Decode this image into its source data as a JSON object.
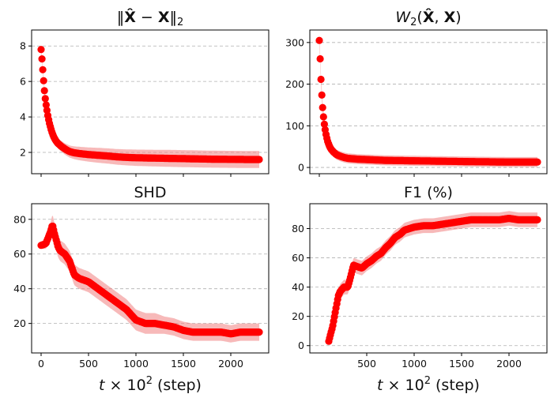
{
  "chart_data": [
    {
      "type": "scatter",
      "title": "‖X̂ − X‖₂",
      "xlabel": "",
      "ylabel": "",
      "xlim": [
        -100,
        2400
      ],
      "ylim": [
        0.8,
        8.9
      ],
      "xticks": [
        0,
        500,
        1000,
        1500,
        2000
      ],
      "yticks": [
        2,
        4,
        6,
        8
      ],
      "xticklabels_visible": false,
      "grid": "y-dashed",
      "color": "#ff0000",
      "band_color": "#f08080",
      "x": [
        0,
        10,
        20,
        30,
        40,
        55,
        70,
        85,
        100,
        120,
        140,
        170,
        200,
        250,
        300,
        350,
        400,
        500,
        600,
        700,
        800,
        900,
        1000,
        1200,
        1400,
        1600,
        1800,
        2000,
        2200,
        2300
      ],
      "y": [
        7.8,
        7.2,
        6.5,
        5.8,
        5.2,
        4.6,
        4.1,
        3.7,
        3.4,
        3.05,
        2.8,
        2.55,
        2.4,
        2.2,
        2.05,
        1.98,
        1.94,
        1.88,
        1.84,
        1.8,
        1.75,
        1.72,
        1.7,
        1.68,
        1.66,
        1.64,
        1.62,
        1.61,
        1.6,
        1.6
      ],
      "band": [
        0.15,
        0.15,
        0.15,
        0.15,
        0.16,
        0.17,
        0.18,
        0.19,
        0.2,
        0.22,
        0.25,
        0.28,
        0.3,
        0.32,
        0.34,
        0.36,
        0.38,
        0.4,
        0.42,
        0.43,
        0.44,
        0.45,
        0.46,
        0.47,
        0.48,
        0.48,
        0.48,
        0.48,
        0.48,
        0.48
      ]
    },
    {
      "type": "scatter",
      "title": "W₂(X̂, X)",
      "xlabel": "",
      "ylabel": "",
      "xlim": [
        -100,
        2400
      ],
      "ylim": [
        -15,
        330
      ],
      "xticks": [
        0,
        500,
        1000,
        1500,
        2000
      ],
      "yticks": [
        0,
        100,
        200,
        300
      ],
      "xticklabels_visible": false,
      "grid": "y-dashed",
      "color": "#ff0000",
      "band_color": "#f08080",
      "x": [
        0,
        5,
        10,
        15,
        20,
        30,
        40,
        55,
        70,
        85,
        100,
        120,
        150,
        180,
        220,
        260,
        300,
        400,
        500,
        700,
        1000,
        1300,
        1600,
        2000,
        2300
      ],
      "y": [
        305,
        280,
        255,
        225,
        200,
        160,
        130,
        100,
        80,
        65,
        55,
        45,
        37,
        31,
        27,
        24,
        22,
        20,
        19,
        17,
        16,
        15,
        14,
        13,
        13
      ],
      "band": [
        10,
        10,
        12,
        12,
        12,
        12,
        12,
        12,
        12,
        12,
        12,
        12,
        12,
        12,
        12,
        12,
        12,
        12,
        12,
        12,
        12,
        12,
        12,
        12,
        12
      ]
    },
    {
      "type": "scatter",
      "title": "SHD",
      "xlabel": "t × 10² (step)",
      "ylabel": "",
      "xlim": [
        -100,
        2400
      ],
      "ylim": [
        3,
        89
      ],
      "xticks": [
        0,
        500,
        1000,
        1500,
        2000
      ],
      "yticks": [
        20,
        40,
        60,
        80
      ],
      "xticklabels_visible": true,
      "grid": "y-dashed",
      "color": "#ff0000",
      "band_color": "#f08080",
      "x": [
        0,
        50,
        100,
        120,
        140,
        160,
        180,
        200,
        250,
        300,
        350,
        400,
        450,
        500,
        600,
        700,
        800,
        900,
        1000,
        1100,
        1200,
        1300,
        1400,
        1500,
        1600,
        1700,
        1800,
        1900,
        2000,
        2100,
        2200,
        2300
      ],
      "y": [
        65,
        66,
        73,
        77,
        72,
        68,
        64,
        62,
        60,
        56,
        48,
        46,
        45,
        44,
        40,
        36,
        32,
        28,
        22,
        20,
        20,
        19,
        18,
        16,
        15,
        15,
        15,
        15,
        14,
        15,
        15,
        15
      ],
      "band": [
        2,
        3,
        5,
        6,
        6,
        6,
        6,
        6,
        6,
        6,
        6,
        6,
        6,
        6,
        6,
        6,
        6,
        6,
        6,
        6,
        6,
        5,
        5,
        5,
        5,
        5,
        5,
        5,
        5,
        5,
        5,
        5
      ]
    },
    {
      "type": "scatter",
      "title": "F1 (%)",
      "xlabel": "t × 10² (step)",
      "ylabel": "",
      "xlim": [
        -100,
        2400
      ],
      "ylim": [
        -5,
        97
      ],
      "xticks": [
        500,
        1000,
        1500,
        2000
      ],
      "yticks": [
        0,
        20,
        40,
        60,
        80
      ],
      "xticklabels_visible": true,
      "grid": "y-dashed",
      "color": "#ff0000",
      "band_color": "#f08080",
      "x": [
        100,
        120,
        140,
        160,
        180,
        200,
        220,
        260,
        300,
        330,
        360,
        400,
        450,
        500,
        550,
        600,
        650,
        700,
        750,
        800,
        850,
        900,
        950,
        1000,
        1100,
        1200,
        1300,
        1400,
        1500,
        1600,
        1700,
        1800,
        1900,
        2000,
        2100,
        2200,
        2300
      ],
      "y": [
        3,
        8,
        13,
        20,
        27,
        34,
        37,
        40,
        40,
        47,
        55,
        54,
        53,
        56,
        58,
        61,
        63,
        67,
        70,
        74,
        76,
        79,
        80,
        81,
        82,
        82,
        83,
        84,
        85,
        86,
        86,
        86,
        86,
        87,
        86,
        86,
        86
      ],
      "band": [
        2,
        3,
        4,
        5,
        5,
        5,
        5,
        5,
        5,
        5,
        5,
        5,
        5,
        5,
        5,
        5,
        5,
        5,
        5,
        5,
        5,
        5,
        5,
        5,
        5,
        5,
        5,
        5,
        5,
        5,
        5,
        5,
        5,
        5,
        5,
        5,
        5
      ]
    }
  ]
}
